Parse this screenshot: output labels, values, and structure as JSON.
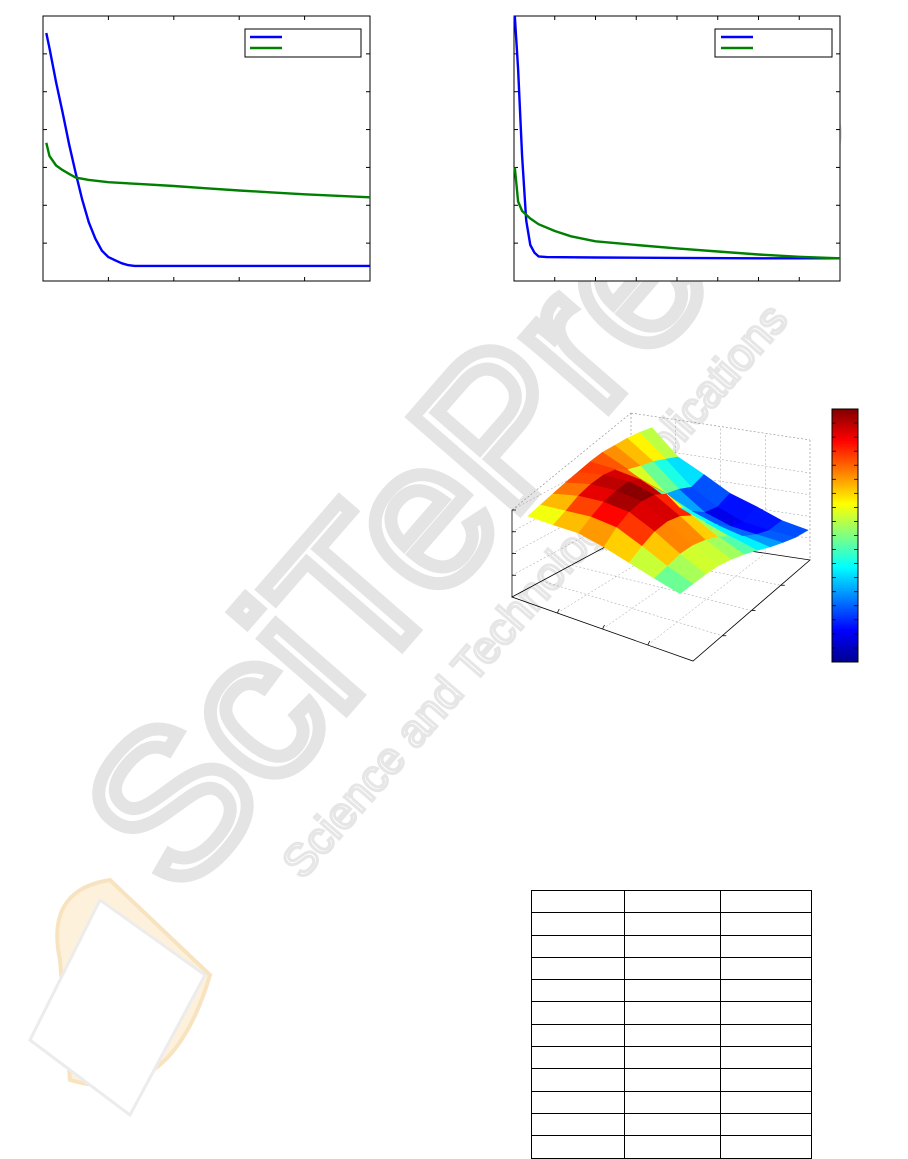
{
  "watermark": {
    "text_main": "SciTePress",
    "text_sub": "Science and Technology Publications",
    "colors": {
      "gray": "#e6e6e6",
      "orange": "#fbe7c4"
    }
  },
  "chart_data": [
    {
      "type": "line",
      "xlim": [
        0,
        50
      ],
      "ylim": [
        0,
        7
      ],
      "grid": false,
      "legend_position": "top-right",
      "series": [
        {
          "color": "#0000ff",
          "x": [
            0.5,
            1,
            2,
            3,
            4,
            5,
            6,
            7,
            8,
            9,
            10,
            11,
            12,
            13,
            14,
            15,
            16,
            20,
            30,
            40,
            50
          ],
          "y": [
            6.55,
            6.15,
            5.25,
            4.45,
            3.6,
            2.85,
            2.15,
            1.55,
            1.12,
            0.8,
            0.63,
            0.55,
            0.47,
            0.42,
            0.4,
            0.4,
            0.4,
            0.4,
            0.4,
            0.4,
            0.4
          ]
        },
        {
          "color": "#008000",
          "x": [
            0.5,
            1,
            2,
            3,
            4,
            5,
            7,
            10,
            15,
            20,
            25,
            30,
            35,
            40,
            45,
            50
          ],
          "y": [
            3.65,
            3.3,
            3.05,
            2.93,
            2.83,
            2.73,
            2.67,
            2.61,
            2.56,
            2.51,
            2.45,
            2.39,
            2.34,
            2.29,
            2.25,
            2.21
          ]
        }
      ]
    },
    {
      "type": "line",
      "xlim": [
        0,
        40
      ],
      "ylim": [
        0,
        7
      ],
      "grid": false,
      "legend_position": "top-right",
      "series": [
        {
          "color": "#0000ff",
          "x": [
            0.1,
            0.5,
            1,
            1.5,
            2,
            2.5,
            3,
            4,
            10,
            20,
            30,
            40
          ],
          "y": [
            7.0,
            5.6,
            3.3,
            1.6,
            0.95,
            0.75,
            0.65,
            0.63,
            0.62,
            0.61,
            0.6,
            0.6
          ]
        },
        {
          "color": "#008000",
          "x": [
            0.1,
            0.5,
            1,
            2,
            3,
            5,
            7,
            10,
            15,
            20,
            25,
            30,
            35,
            40
          ],
          "y": [
            3.0,
            2.1,
            1.85,
            1.65,
            1.5,
            1.32,
            1.18,
            1.05,
            0.95,
            0.86,
            0.78,
            0.7,
            0.64,
            0.6
          ]
        }
      ]
    },
    {
      "type": "surface",
      "colormap": "jet",
      "colorbar": true,
      "grid": true,
      "surface_values": [
        [
          0.55,
          0.6,
          0.65,
          0.7,
          0.74,
          0.78,
          0.8,
          0.78,
          0.76,
          0.72,
          0.66
        ],
        [
          0.6,
          0.7,
          0.82,
          0.88,
          0.9,
          0.86,
          0.72,
          0.64,
          0.58,
          0.48,
          0.38
        ],
        [
          0.66,
          0.8,
          0.92,
          0.98,
          1.0,
          0.9,
          0.62,
          0.38,
          0.32,
          0.22,
          0.3
        ],
        [
          0.62,
          0.82,
          0.95,
          1.0,
          0.98,
          0.86,
          0.5,
          0.3,
          0.14,
          0.1,
          0.2
        ],
        [
          0.55,
          0.7,
          0.82,
          0.86,
          0.82,
          0.7,
          0.46,
          0.28,
          0.12,
          0.06,
          0.2
        ],
        [
          0.48,
          0.56,
          0.64,
          0.66,
          0.62,
          0.55,
          0.42,
          0.3,
          0.2,
          0.14,
          0.18
        ],
        [
          0.42,
          0.46,
          0.5,
          0.52,
          0.5,
          0.46,
          0.4,
          0.33,
          0.28,
          0.24,
          0.24
        ]
      ]
    },
    {
      "type": "table",
      "columns": [
        "",
        "",
        ""
      ],
      "rows": [
        [
          "",
          "",
          ""
        ],
        [
          "",
          "",
          ""
        ],
        [
          "",
          "",
          ""
        ],
        [
          "",
          "",
          ""
        ],
        [
          "",
          "",
          ""
        ],
        [
          "",
          "",
          ""
        ],
        [
          "",
          "",
          ""
        ],
        [
          "",
          "",
          ""
        ],
        [
          "",
          "",
          ""
        ],
        [
          "",
          "",
          ""
        ],
        [
          "",
          "",
          ""
        ]
      ]
    }
  ]
}
